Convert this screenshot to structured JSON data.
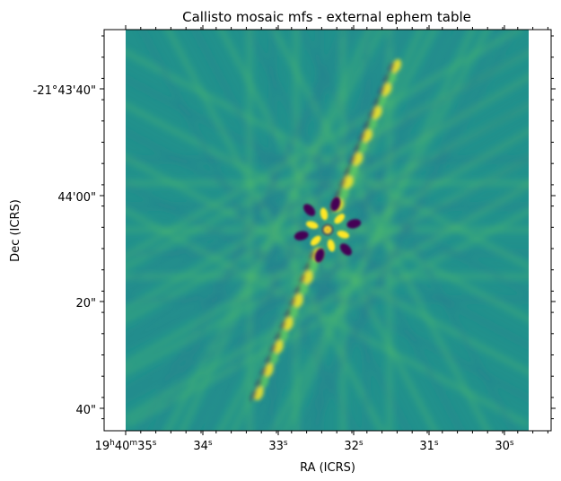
{
  "chart_data": {
    "type": "heatmap",
    "title": "Callisto mosaic mfs - external ephem table",
    "xlabel": "RA (ICRS)",
    "ylabel": "Dec (ICRS)",
    "x_ticks": [
      {
        "base": "19",
        "u1": "h",
        "mid": "40",
        "u2": "m",
        "sec": "35",
        "u3": "s"
      },
      {
        "sec": "34",
        "u3": "s"
      },
      {
        "sec": "33",
        "u3": "s"
      },
      {
        "sec": "32",
        "u3": "s"
      },
      {
        "sec": "31",
        "u3": "s"
      },
      {
        "sec": "30",
        "u3": "s"
      }
    ],
    "y_ticks": [
      "-21°43'40\"",
      "44'00\"",
      "20\"",
      "40\""
    ],
    "colormap": "viridis",
    "colors": {
      "low": "#440154",
      "background": "#21918c",
      "mid": "#5ec962",
      "high": "#fde725"
    },
    "source_center": {
      "ra": "19h40m32.2s",
      "dec": "-21°44'10\""
    },
    "grid": false
  }
}
